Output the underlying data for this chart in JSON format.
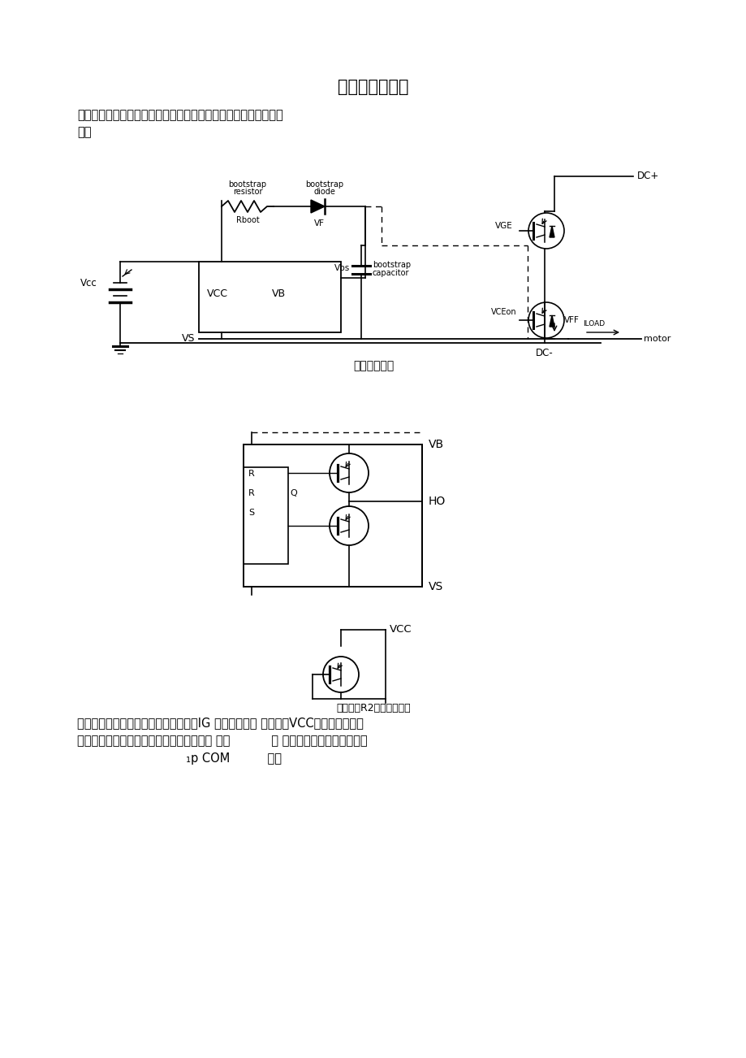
{
  "bg_color": "#ffffff",
  "text_color": "#000000",
  "title": "：自举供电电路",
  "caption1": "自举供电电路",
  "caption3": "驱动模块R2呷的输出接匚",
  "body_intro_1": "该设计所采用自举供电电路是由一个二极管和一个电容组成，如下",
  "body_intro_2": "图：",
  "bottom_line1": "以上这种自举电路适用于三个上桥臂的IG 的伽轿僵蕳且 组电源（VCC）供电，这种方",
  "bottom_line2": "成本低，但在占空比和导通时间方面会有局 电。           案 限，因为要求对自举电容反",
  "bottom_line3": "                             ₁p COM          复充"
}
